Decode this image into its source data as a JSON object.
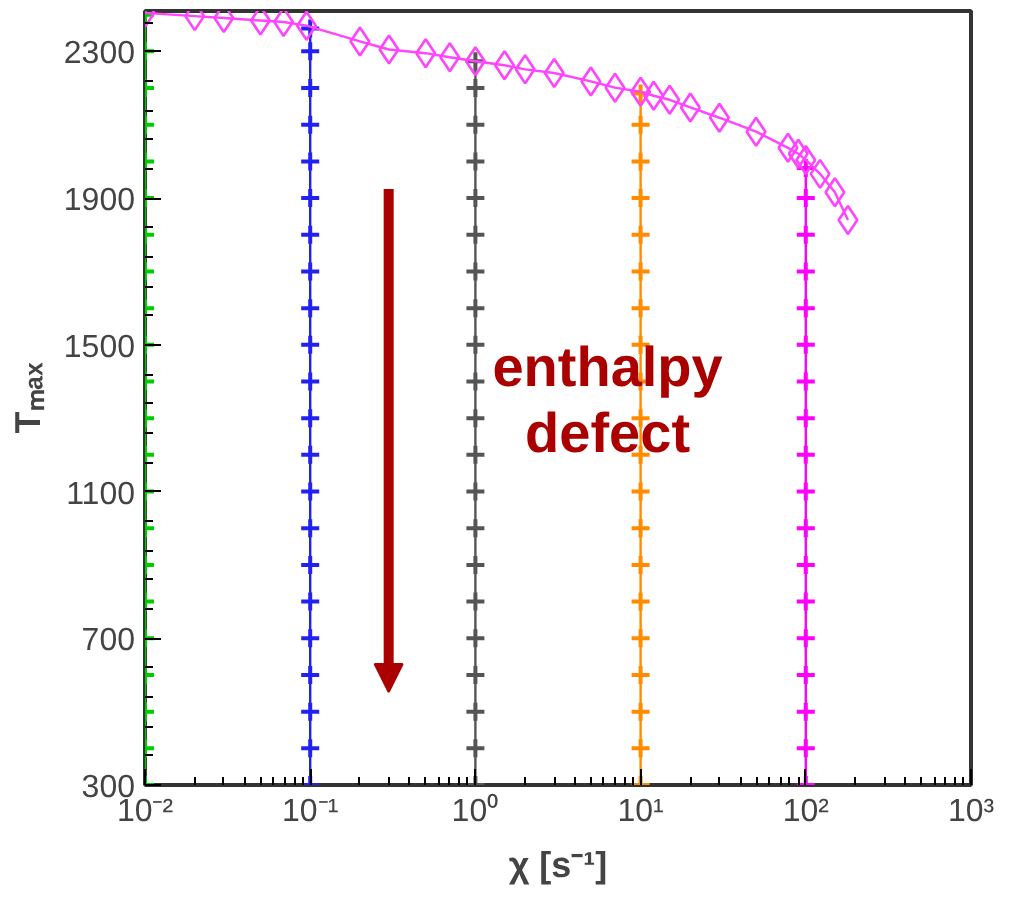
{
  "chart_data": {
    "type": "line",
    "xlabel": "χ [s⁻¹]",
    "ylabel": "Tₘₐₓ",
    "log": "x",
    "grid": false,
    "xlim": [
      0.01,
      1000
    ],
    "ylim": [
      300,
      2410
    ],
    "xticks": [
      {
        "value": 0.01,
        "label": "10⁻²"
      },
      {
        "value": 0.1,
        "label": "10⁻¹"
      },
      {
        "value": 1,
        "label": "10⁰"
      },
      {
        "value": 10,
        "label": "10¹"
      },
      {
        "value": 100,
        "label": "10²"
      },
      {
        "value": 1000,
        "label": "10³"
      }
    ],
    "yticks": [
      300,
      700,
      1100,
      1500,
      1900,
      2300
    ],
    "annotations": [
      "enthalpy defect"
    ],
    "series": [
      {
        "color": "#00cc00",
        "marker": "cross",
        "x": [
          0.01,
          0.01,
          0.01,
          0.01,
          0.01,
          0.01,
          0.01,
          0.01,
          0.01,
          0.01,
          0.01,
          0.01,
          0.01,
          0.01,
          0.01,
          0.01,
          0.01,
          0.01,
          0.01,
          0.01,
          0.01,
          0.01
        ],
        "values": [
          300,
          400,
          500,
          600,
          700,
          800,
          900,
          1000,
          1100,
          1200,
          1300,
          1400,
          1500,
          1600,
          1700,
          1800,
          1900,
          2000,
          2100,
          2200,
          2300,
          2400
        ]
      },
      {
        "color": "#2222ee",
        "marker": "cross",
        "x": [
          0.1,
          0.1,
          0.1,
          0.1,
          0.1,
          0.1,
          0.1,
          0.1,
          0.1,
          0.1,
          0.1,
          0.1,
          0.1,
          0.1,
          0.1,
          0.1,
          0.1,
          0.1,
          0.1,
          0.1,
          0.1,
          0.1
        ],
        "values": [
          300,
          400,
          500,
          600,
          700,
          800,
          900,
          1000,
          1100,
          1200,
          1300,
          1400,
          1500,
          1600,
          1700,
          1800,
          1900,
          2000,
          2100,
          2200,
          2300,
          2362
        ]
      },
      {
        "color": "#555555",
        "marker": "cross",
        "x": [
          1,
          1,
          1,
          1,
          1,
          1,
          1,
          1,
          1,
          1,
          1,
          1,
          1,
          1,
          1,
          1,
          1,
          1,
          1,
          1,
          1
        ],
        "values": [
          300,
          400,
          500,
          600,
          700,
          800,
          900,
          1000,
          1100,
          1200,
          1300,
          1400,
          1500,
          1600,
          1700,
          1800,
          1900,
          2000,
          2100,
          2200,
          2273
        ]
      },
      {
        "color": "#ff8c00",
        "marker": "cross",
        "x": [
          10,
          10,
          10,
          10,
          10,
          10,
          10,
          10,
          10,
          10,
          10,
          10,
          10,
          10,
          10,
          10,
          10,
          10,
          10,
          10
        ],
        "values": [
          300,
          400,
          500,
          600,
          700,
          800,
          900,
          1000,
          1100,
          1200,
          1300,
          1400,
          1500,
          1600,
          1700,
          1800,
          1900,
          2000,
          2100,
          2185
        ]
      },
      {
        "color": "#ff00ff",
        "marker": "cross",
        "x": [
          100,
          100,
          100,
          100,
          100,
          100,
          100,
          100,
          100,
          100,
          100,
          100,
          100,
          100,
          100,
          100,
          100,
          100
        ],
        "values": [
          300,
          400,
          500,
          600,
          700,
          800,
          900,
          1000,
          1100,
          1200,
          1300,
          1400,
          1500,
          1600,
          1700,
          1800,
          1900,
          1982
        ]
      },
      {
        "color": "#ff44ff",
        "marker": "diamond",
        "x": [
          0.01,
          0.02,
          0.03,
          0.05,
          0.069,
          0.095,
          0.2,
          0.3,
          0.5,
          0.7,
          1,
          1.5,
          2,
          3,
          5,
          7,
          10,
          12,
          15,
          20,
          30,
          50,
          78,
          90,
          100,
          122,
          150,
          180
        ],
        "values": [
          2405,
          2396,
          2391,
          2384,
          2380,
          2370,
          2327,
          2305,
          2295,
          2284,
          2273,
          2262,
          2251,
          2241,
          2218,
          2201,
          2190,
          2179,
          2168,
          2147,
          2119,
          2081,
          2037,
          2021,
          2004,
          1966,
          1916,
          1840
        ]
      }
    ]
  }
}
